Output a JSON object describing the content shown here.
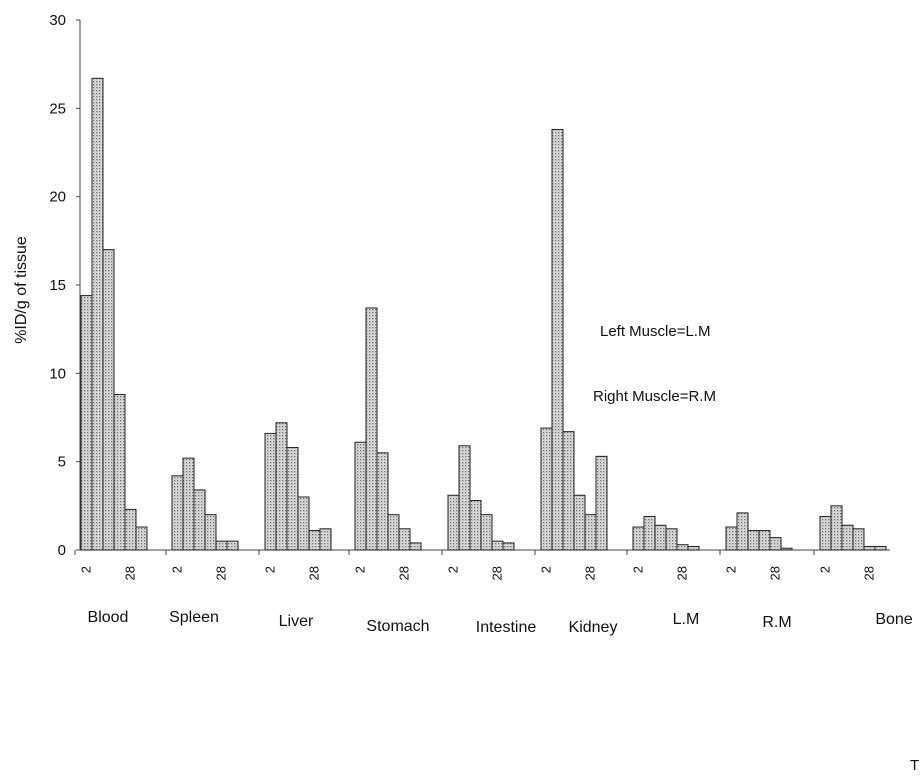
{
  "chart_data": {
    "type": "bar",
    "ylabel": "%ID/g of tissue",
    "ylim": [
      0,
      30
    ],
    "yticks": [
      0,
      5,
      10,
      15,
      20,
      25,
      30
    ],
    "groups": [
      {
        "name": "Blood",
        "values": [
          14.4,
          26.7,
          17.0,
          8.8,
          2.3,
          1.3
        ],
        "tick_labels": [
          "2",
          "28"
        ]
      },
      {
        "name": "Spleen",
        "values": [
          4.2,
          5.2,
          3.4,
          2.0,
          0.5,
          0.5
        ],
        "tick_labels": [
          "2",
          "28"
        ]
      },
      {
        "name": "Liver",
        "values": [
          6.6,
          7.2,
          5.8,
          3.0,
          1.1,
          1.2
        ],
        "tick_labels": [
          "2",
          "28"
        ]
      },
      {
        "name": "Stomach",
        "values": [
          6.1,
          13.7,
          5.5,
          2.0,
          1.2,
          0.4
        ],
        "tick_labels": [
          "2",
          "28"
        ]
      },
      {
        "name": "Intestine",
        "values": [
          3.1,
          5.9,
          2.8,
          2.0,
          0.5,
          0.4
        ],
        "tick_labels": [
          "2",
          "28"
        ]
      },
      {
        "name": "Kidney",
        "values": [
          6.9,
          23.8,
          6.7,
          3.1,
          2.0,
          5.3
        ],
        "tick_labels": [
          "2",
          "28"
        ]
      },
      {
        "name": "L.M",
        "values": [
          1.3,
          1.9,
          1.4,
          1.2,
          0.3,
          0.2
        ],
        "tick_labels": [
          "2",
          "28"
        ]
      },
      {
        "name": "R.M",
        "values": [
          1.3,
          2.1,
          1.1,
          1.1,
          0.7,
          0.1
        ],
        "tick_labels": [
          "2",
          "28"
        ]
      },
      {
        "name": "Bone",
        "values": [
          1.9,
          2.5,
          1.4,
          1.2,
          0.2,
          0.2
        ],
        "tick_labels": [
          "2",
          "28"
        ]
      }
    ],
    "annotations": [
      "Left Muscle=L.M",
      "Right Muscle=R.M"
    ],
    "grid": false,
    "legend": "none"
  },
  "stray_mark": "T"
}
